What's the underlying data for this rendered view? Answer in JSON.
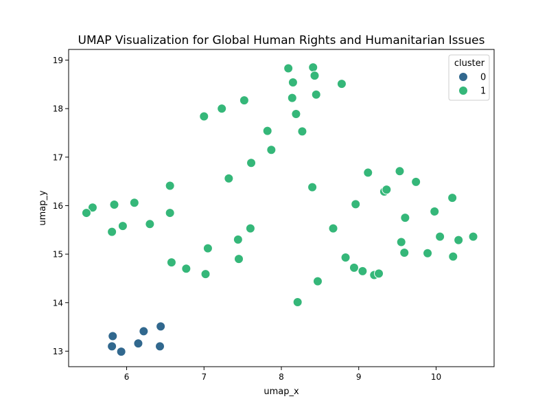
{
  "chart_data": {
    "type": "scatter",
    "title": "UMAP Visualization for Global Human Rights and Humanitarian Issues",
    "xlabel": "umap_x",
    "ylabel": "umap_y",
    "xlim": [
      5.25,
      10.75
    ],
    "ylim": [
      12.68,
      19.22
    ],
    "xticks": [
      6,
      7,
      8,
      9,
      10
    ],
    "yticks": [
      13,
      14,
      15,
      16,
      17,
      18,
      19
    ],
    "grid": false,
    "legend": {
      "title": "cluster",
      "placement": "top-right"
    },
    "series": [
      {
        "name": "0",
        "color": "#31688e",
        "points": [
          [
            5.82,
            13.31
          ],
          [
            5.81,
            13.1
          ],
          [
            5.93,
            12.99
          ],
          [
            6.15,
            13.16
          ],
          [
            6.22,
            13.41
          ],
          [
            6.44,
            13.51
          ],
          [
            6.43,
            13.1
          ]
        ]
      },
      {
        "name": "1",
        "color": "#35b779",
        "points": [
          [
            8.09,
            18.83
          ],
          [
            8.41,
            18.85
          ],
          [
            8.43,
            18.68
          ],
          [
            8.15,
            18.54
          ],
          [
            8.78,
            18.51
          ],
          [
            8.45,
            18.29
          ],
          [
            8.14,
            18.22
          ],
          [
            7.52,
            18.17
          ],
          [
            7.23,
            18.0
          ],
          [
            7.0,
            17.84
          ],
          [
            8.19,
            17.89
          ],
          [
            7.82,
            17.54
          ],
          [
            8.27,
            17.53
          ],
          [
            7.87,
            17.15
          ],
          [
            7.61,
            16.88
          ],
          [
            7.32,
            16.56
          ],
          [
            6.56,
            16.41
          ],
          [
            8.4,
            16.38
          ],
          [
            9.12,
            16.68
          ],
          [
            9.53,
            16.71
          ],
          [
            9.74,
            16.49
          ],
          [
            9.33,
            16.29
          ],
          [
            9.36,
            16.33
          ],
          [
            10.21,
            16.16
          ],
          [
            8.96,
            16.03
          ],
          [
            9.98,
            15.88
          ],
          [
            9.6,
            15.75
          ],
          [
            5.56,
            15.96
          ],
          [
            5.48,
            15.85
          ],
          [
            5.84,
            16.02
          ],
          [
            6.1,
            16.06
          ],
          [
            6.56,
            15.85
          ],
          [
            5.95,
            15.58
          ],
          [
            6.3,
            15.62
          ],
          [
            5.81,
            15.46
          ],
          [
            7.6,
            15.53
          ],
          [
            7.44,
            15.3
          ],
          [
            7.05,
            15.12
          ],
          [
            8.67,
            15.53
          ],
          [
            10.05,
            15.36
          ],
          [
            10.48,
            15.36
          ],
          [
            10.29,
            15.29
          ],
          [
            9.55,
            15.25
          ],
          [
            9.59,
            15.03
          ],
          [
            9.89,
            15.02
          ],
          [
            10.22,
            14.95
          ],
          [
            6.58,
            14.83
          ],
          [
            6.77,
            14.7
          ],
          [
            7.02,
            14.59
          ],
          [
            7.45,
            14.9
          ],
          [
            8.83,
            14.93
          ],
          [
            8.94,
            14.72
          ],
          [
            9.05,
            14.65
          ],
          [
            9.2,
            14.57
          ],
          [
            9.26,
            14.6
          ],
          [
            8.47,
            14.44
          ],
          [
            8.21,
            14.01
          ]
        ]
      }
    ]
  }
}
